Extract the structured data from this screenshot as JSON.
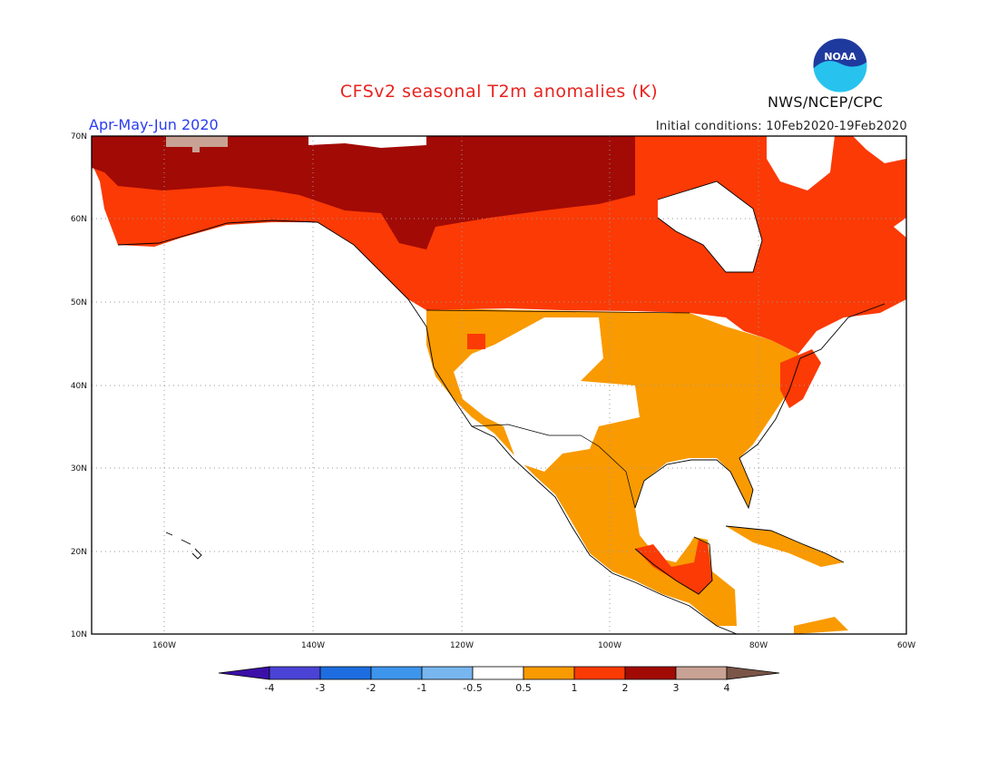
{
  "title": "CFSv2 seasonal T2m anomalies (K)",
  "season": "Apr-May-Jun 2020",
  "initial_conditions": "Initial conditions: 10Feb2020-19Feb2020",
  "organization": "NWS/NCEP/CPC",
  "logo_text": "NOAA",
  "colors": {
    "title": "#e8231f",
    "season": "#2a3df0",
    "land_outline": "#000000",
    "grid": "#9a9a9a",
    "anomaly_0_5_to_1": "#f99a00",
    "anomaly_1_to_2": "#fb3a05",
    "anomaly_2_to_3": "#a20a05",
    "anomaly_3_to_4": "#c8a294"
  },
  "map": {
    "lon_range": [
      -172,
      -60
    ],
    "lat_range": [
      10,
      70
    ],
    "lat_labels": [
      "70N",
      "60N",
      "50N",
      "40N",
      "30N",
      "20N",
      "10N"
    ],
    "lon_labels": [
      "160W",
      "140W",
      "120W",
      "100W",
      "80W",
      "60W"
    ]
  },
  "colorbar": {
    "labels": [
      "-4",
      "-3",
      "-2",
      "-1",
      "-0.5",
      "0.5",
      "1",
      "2",
      "3",
      "4"
    ],
    "colors": [
      "#3b0fa8",
      "#4a43d6",
      "#1d6de0",
      "#3e95ec",
      "#78b6f0",
      "#ffffff",
      "#f99a00",
      "#fb3a05",
      "#a20a05",
      "#c8a294",
      "#7a5548"
    ]
  }
}
